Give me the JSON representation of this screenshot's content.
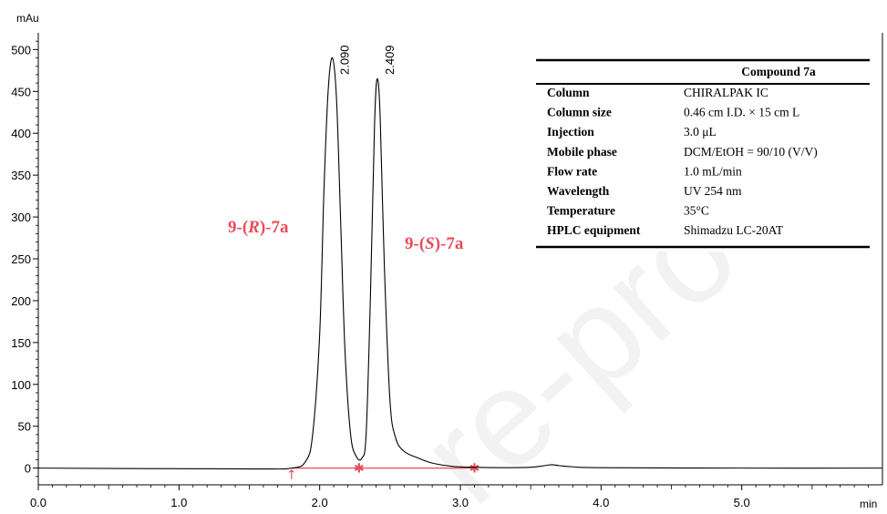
{
  "chart_data": {
    "type": "line",
    "ylabel": "mAu",
    "xlabel": "min",
    "xlim": [
      0.0,
      6.0
    ],
    "ylim": [
      -20,
      520
    ],
    "x_ticks": [
      "0.0",
      "1.0",
      "2.0",
      "3.0",
      "4.0",
      "5.0"
    ],
    "y_ticks": [
      "0",
      "50",
      "100",
      "150",
      "200",
      "250",
      "300",
      "350",
      "400",
      "450",
      "500"
    ],
    "series": [
      {
        "x": [
          0.0,
          1.5,
          1.8,
          1.9,
          1.95,
          2.0,
          2.03,
          2.06,
          2.09,
          2.12,
          2.15,
          2.18,
          2.22,
          2.26,
          2.3,
          2.33,
          2.36,
          2.39,
          2.409,
          2.43,
          2.46,
          2.5,
          2.54,
          2.6,
          2.7,
          2.8,
          2.95,
          3.1,
          3.3,
          3.5,
          3.6,
          3.65,
          3.7,
          3.8,
          4.0,
          5.0,
          6.0
        ],
        "values": [
          0,
          -1,
          0,
          8,
          40,
          160,
          330,
          450,
          490,
          440,
          290,
          140,
          40,
          14,
          12,
          40,
          200,
          410,
          465,
          420,
          240,
          80,
          36,
          20,
          12,
          6,
          2,
          1,
          0.5,
          1,
          3,
          4,
          3,
          1.5,
          0.5,
          0,
          0
        ]
      }
    ],
    "peak_labels": [
      {
        "x": 2.09,
        "text": "2.090"
      },
      {
        "x": 2.409,
        "text": "2.409"
      }
    ],
    "baseline_markers": [
      {
        "x": 1.8,
        "symbol": "↑"
      },
      {
        "x": 2.28,
        "symbol": "✱"
      },
      {
        "x": 3.1,
        "symbol": "✱"
      }
    ],
    "baseline_color": "#e84c5a",
    "annotations": [
      {
        "text": "9-(R)-7a",
        "prefix": "9-(",
        "italic": "R",
        "suffix": ")-7a"
      },
      {
        "text": "9-(S)-7a",
        "prefix": "9-(",
        "italic": "S",
        "suffix": ")-7a"
      }
    ]
  },
  "table": {
    "title": "Compound 7a",
    "rows": [
      {
        "label": "Column",
        "value": "CHIRALPAK IC"
      },
      {
        "label": "Column size",
        "value": "0.46 cm I.D. × 15 cm L"
      },
      {
        "label": "Injection",
        "value": "3.0 μL"
      },
      {
        "label": "Mobile phase",
        "value": "DCM/EtOH = 90/10 (V/V)"
      },
      {
        "label": "Flow rate",
        "value": "1.0 mL/min"
      },
      {
        "label": "Wavelength",
        "value": "UV 254 nm"
      },
      {
        "label": "Temperature",
        "value": "35°C"
      },
      {
        "label": "HPLC equipment",
        "value": "Shimadzu LC-20AT"
      }
    ]
  },
  "watermark": "re-proo",
  "colors": {
    "trace": "#000000",
    "annotation": "#e84c5a",
    "watermark": "#f2f2f2"
  }
}
